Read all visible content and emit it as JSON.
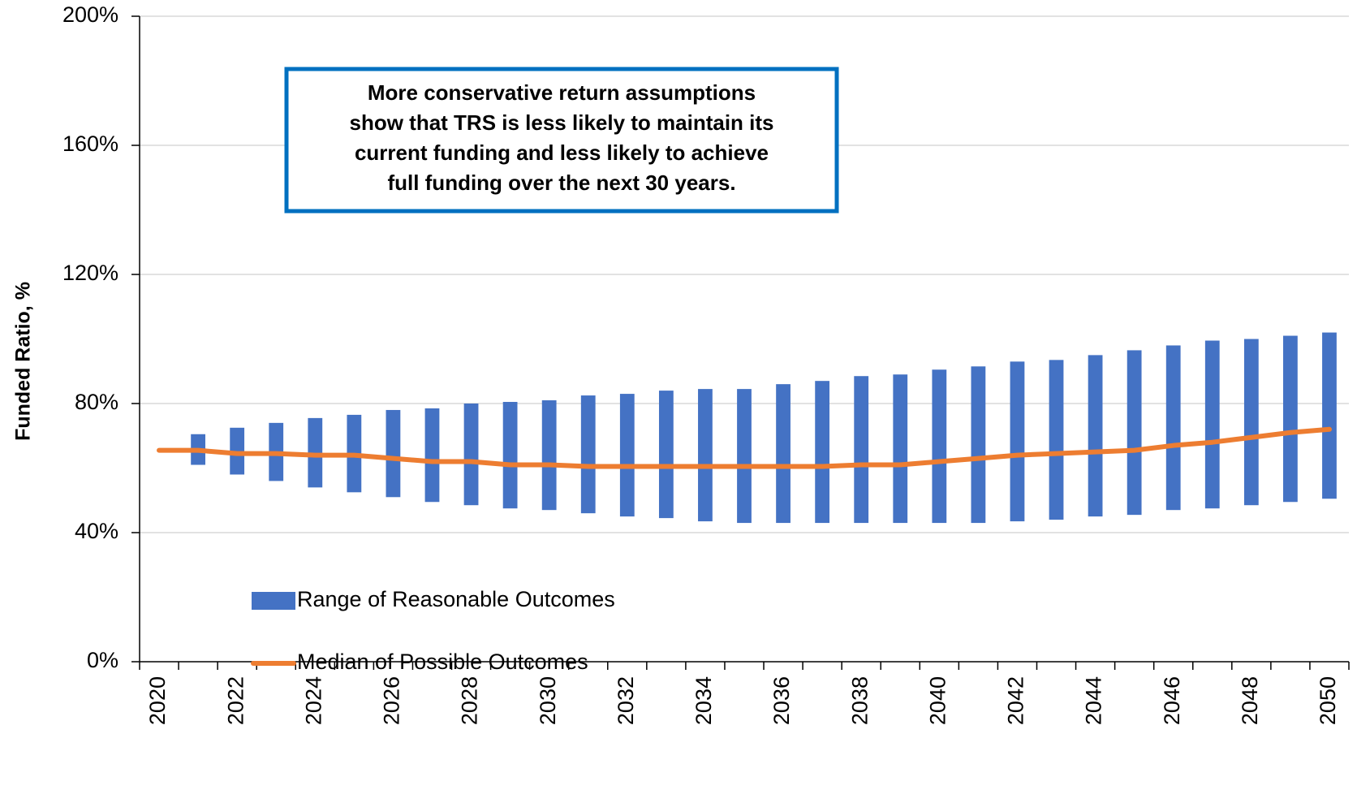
{
  "chart_data": {
    "type": "range-bar-line",
    "y_label": "Funded Ratio, %",
    "annotation": [
      "More conservative return assumptions",
      "show that TRS is less likely to maintain its",
      "current funding and less likely to achieve",
      "full funding over the next 30 years."
    ],
    "categories": [
      "2020",
      null,
      "2022",
      null,
      "2024",
      null,
      "2026",
      null,
      "2028",
      null,
      "2030",
      null,
      "2032",
      null,
      "2034",
      null,
      "2036",
      null,
      "2038",
      null,
      "2040",
      null,
      "2042",
      null,
      "2044",
      null,
      "2046",
      null,
      "2048",
      null,
      "2050"
    ],
    "series": [
      {
        "name": "Range of Reasonable Outcomes",
        "color": "#4472c4",
        "low": [
          null,
          61,
          58,
          56,
          54,
          52.5,
          51,
          49.5,
          48.5,
          47.5,
          47,
          46,
          45,
          44.5,
          43.5,
          43,
          43,
          43,
          43,
          43,
          43,
          43,
          43.5,
          44,
          45,
          45.5,
          47,
          47.5,
          48.5,
          49.5,
          50.5
        ],
        "high": [
          null,
          70.5,
          72.5,
          74,
          75.5,
          76.5,
          78,
          78.5,
          80,
          80.5,
          81,
          82.5,
          83,
          84,
          84.5,
          84.5,
          86,
          87,
          88.5,
          89,
          90.5,
          91.5,
          93,
          93.5,
          95,
          96.5,
          98,
          99.5,
          100,
          101,
          102
        ]
      },
      {
        "name": "Median of Possible Outcomes",
        "color": "#ed7d31",
        "values": [
          65.5,
          65.5,
          64.5,
          64.5,
          64,
          64,
          63,
          62,
          62,
          61,
          61,
          60.5,
          60.5,
          60.5,
          60.5,
          60.5,
          60.5,
          60.5,
          61,
          61,
          62,
          63,
          64,
          64.5,
          65,
          65.5,
          67,
          68,
          69.5,
          71,
          72
        ]
      }
    ],
    "ylim": [
      0,
      200
    ],
    "yticks": [
      {
        "value": 0,
        "label": "0%"
      },
      {
        "value": 40,
        "label": "40%"
      },
      {
        "value": 80,
        "label": "80%"
      },
      {
        "value": 120,
        "label": "120%"
      },
      {
        "value": 160,
        "label": "160%"
      },
      {
        "value": 200,
        "label": "200%"
      }
    ],
    "grid": true
  }
}
